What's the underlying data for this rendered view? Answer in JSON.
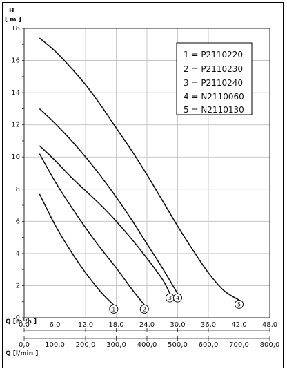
{
  "chart_data": {
    "type": "line",
    "y_axis": {
      "label_line1": "H",
      "label_line2": "[ m ]",
      "ticks": [
        "0",
        "2",
        "4",
        "6",
        "8",
        "10",
        "12",
        "14",
        "16",
        "18"
      ],
      "range": [
        0,
        18
      ]
    },
    "x_axis_m3h": {
      "label": "Q [m³/h ]",
      "ticks": [
        "0,0",
        "6,0",
        "12,0",
        "18,0",
        "24,0",
        "30,0",
        "36,0",
        "42,0",
        "48,0"
      ],
      "range": [
        0,
        48
      ]
    },
    "x_axis_lmin": {
      "label": "Q [l/min ]",
      "ticks": [
        "0,0",
        "100,0",
        "200,0",
        "300,0",
        "400,0",
        "500,0",
        "600,0",
        "700,0",
        "800,0"
      ],
      "range": [
        0,
        800
      ]
    },
    "grid": true,
    "legend": {
      "placement": "top-right",
      "entries": [
        "1 = P2110220",
        "2 = P2110230",
        "3 = P2110240",
        "4 = N2110060",
        "5 = N2110130"
      ]
    },
    "series": [
      {
        "id": "1",
        "marker": "1",
        "points": [
          [
            3.0,
            7.7
          ],
          [
            6,
            5.8
          ],
          [
            9,
            4.2
          ],
          [
            12,
            2.8
          ],
          [
            15,
            1.6
          ],
          [
            17.5,
            0.8
          ]
        ]
      },
      {
        "id": "2",
        "marker": "2",
        "points": [
          [
            3.0,
            10.2
          ],
          [
            6,
            8.5
          ],
          [
            9,
            7.0
          ],
          [
            12,
            5.6
          ],
          [
            15,
            4.3
          ],
          [
            18,
            3.1
          ],
          [
            21,
            1.8
          ],
          [
            23.5,
            0.8
          ]
        ]
      },
      {
        "id": "3",
        "marker": "3",
        "points": [
          [
            3.0,
            10.7
          ],
          [
            6,
            9.8
          ],
          [
            9,
            8.8
          ],
          [
            12,
            7.9
          ],
          [
            15,
            7.0
          ],
          [
            18,
            6.0
          ],
          [
            21,
            4.9
          ],
          [
            24,
            3.7
          ],
          [
            27,
            2.4
          ],
          [
            28.5,
            1.5
          ]
        ]
      },
      {
        "id": "4",
        "marker": "4",
        "points": [
          [
            3.0,
            13.0
          ],
          [
            6,
            12.1
          ],
          [
            9,
            11.1
          ],
          [
            12,
            10.0
          ],
          [
            15,
            8.8
          ],
          [
            18,
            7.5
          ],
          [
            21,
            6.1
          ],
          [
            24,
            4.6
          ],
          [
            27,
            3.1
          ],
          [
            30.0,
            1.5
          ]
        ]
      },
      {
        "id": "5",
        "marker": "5",
        "points": [
          [
            3.0,
            17.4
          ],
          [
            6,
            16.6
          ],
          [
            9,
            15.6
          ],
          [
            12,
            14.5
          ],
          [
            15,
            13.2
          ],
          [
            18,
            11.8
          ],
          [
            21,
            10.4
          ],
          [
            24,
            8.9
          ],
          [
            27,
            7.3
          ],
          [
            30,
            5.7
          ],
          [
            33,
            4.2
          ],
          [
            36,
            2.8
          ],
          [
            39,
            1.7
          ],
          [
            42,
            1.1
          ]
        ]
      }
    ]
  }
}
